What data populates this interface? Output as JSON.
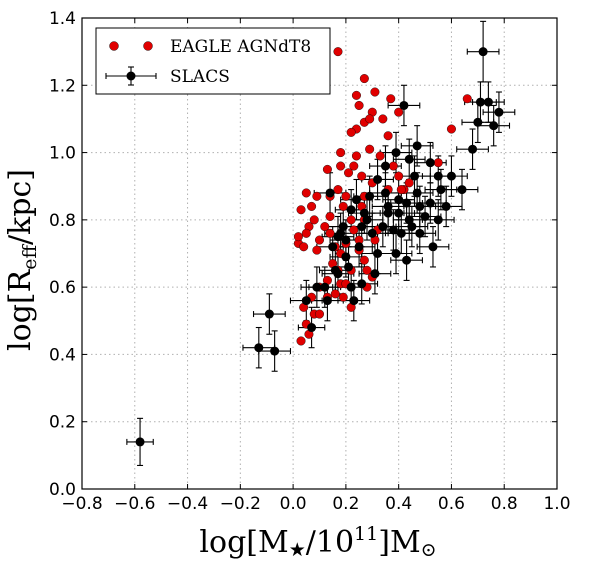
{
  "chart_data": {
    "type": "scatter",
    "title": "",
    "xlabel": "log[M★/10^11]M☉",
    "xlabel_parts": {
      "a": "log[M",
      "b": "★",
      "c": "/10",
      "d": "11",
      "e": "]M",
      "f": "⊙"
    },
    "ylabel": "log[Reff/kpc]",
    "ylabel_parts": {
      "a": "log[R",
      "b": "eff",
      "c": "/kpc]"
    },
    "xlim": [
      -0.8,
      1.0
    ],
    "ylim": [
      0.0,
      1.4
    ],
    "xticks": [
      "−0.8",
      "−0.6",
      "−0.4",
      "−0.2",
      "0.0",
      "0.2",
      "0.4",
      "0.6",
      "0.8",
      "1.0"
    ],
    "xtick_values": [
      -0.8,
      -0.6,
      -0.4,
      -0.2,
      0.0,
      0.2,
      0.4,
      0.6,
      0.8,
      1.0
    ],
    "yticks": [
      "0.0",
      "0.2",
      "0.4",
      "0.6",
      "0.8",
      "1.0",
      "1.2",
      "1.4"
    ],
    "ytick_values": [
      0.0,
      0.2,
      0.4,
      0.6,
      0.8,
      1.0,
      1.2,
      1.4
    ],
    "grid": true,
    "legend_position": "top-left",
    "series": [
      {
        "name": "EAGLE AGNdT8",
        "color": "#e00000",
        "marker": "circle",
        "points": [
          [
            0.17,
            1.3
          ],
          [
            0.24,
            1.17
          ],
          [
            0.25,
            1.14
          ],
          [
            0.27,
            1.22
          ],
          [
            0.3,
            1.12
          ],
          [
            0.31,
            1.18
          ],
          [
            0.27,
            1.09
          ],
          [
            0.29,
            1.1
          ],
          [
            0.34,
            1.1
          ],
          [
            0.36,
            1.05
          ],
          [
            0.37,
            1.16
          ],
          [
            0.4,
            1.12
          ],
          [
            0.38,
            0.96
          ],
          [
            0.24,
            1.07
          ],
          [
            0.22,
            1.06
          ],
          [
            0.18,
            1.0
          ],
          [
            0.24,
            0.99
          ],
          [
            0.29,
            1.01
          ],
          [
            0.33,
            0.99
          ],
          [
            0.18,
            0.96
          ],
          [
            0.21,
            0.94
          ],
          [
            0.3,
            0.91
          ],
          [
            0.26,
            0.93
          ],
          [
            0.13,
            0.95
          ],
          [
            0.27,
            0.87
          ],
          [
            0.36,
            0.89
          ],
          [
            0.42,
            0.89
          ],
          [
            0.4,
            0.93
          ],
          [
            0.17,
            0.89
          ],
          [
            0.2,
            0.87
          ],
          [
            0.14,
            0.87
          ],
          [
            0.09,
            0.87
          ],
          [
            0.05,
            0.88
          ],
          [
            0.07,
            0.84
          ],
          [
            0.03,
            0.83
          ],
          [
            0.06,
            0.78
          ],
          [
            0.08,
            0.8
          ],
          [
            0.12,
            0.78
          ],
          [
            0.14,
            0.76
          ],
          [
            0.1,
            0.74
          ],
          [
            0.05,
            0.76
          ],
          [
            0.02,
            0.73
          ],
          [
            0.04,
            0.72
          ],
          [
            0.2,
            0.73
          ],
          [
            0.23,
            0.77
          ],
          [
            0.27,
            0.8
          ],
          [
            0.18,
            0.7
          ],
          [
            0.15,
            0.67
          ],
          [
            0.22,
            0.65
          ],
          [
            0.27,
            0.68
          ],
          [
            0.25,
            0.71
          ],
          [
            0.31,
            0.74
          ],
          [
            0.32,
            0.77
          ],
          [
            0.13,
            0.62
          ],
          [
            0.18,
            0.61
          ],
          [
            0.1,
            0.6
          ],
          [
            0.07,
            0.57
          ],
          [
            0.04,
            0.54
          ],
          [
            0.08,
            0.52
          ],
          [
            0.1,
            0.52
          ],
          [
            0.13,
            0.57
          ],
          [
            0.16,
            0.58
          ],
          [
            0.19,
            0.57
          ],
          [
            0.22,
            0.54
          ],
          [
            0.17,
            0.65
          ],
          [
            0.2,
            0.61
          ],
          [
            0.28,
            0.65
          ],
          [
            0.3,
            0.63
          ],
          [
            0.28,
            0.6
          ],
          [
            0.05,
            0.49
          ],
          [
            0.06,
            0.46
          ],
          [
            0.03,
            0.44
          ],
          [
            0.41,
            0.89
          ],
          [
            0.44,
            0.91
          ],
          [
            0.23,
            0.96
          ],
          [
            0.14,
            0.81
          ],
          [
            0.02,
            0.75
          ],
          [
            0.25,
            0.74
          ],
          [
            0.16,
            0.72
          ],
          [
            0.09,
            0.71
          ],
          [
            0.6,
            1.07
          ],
          [
            0.66,
            1.16
          ],
          [
            0.55,
            0.97
          ],
          [
            0.26,
            0.84
          ],
          [
            0.22,
            0.8
          ],
          [
            0.19,
            0.84
          ]
        ]
      },
      {
        "name": "SLACS",
        "color": "#000000",
        "marker": "circle-errorbar",
        "points": [
          [
            -0.58,
            0.14,
            0.05,
            0.07
          ],
          [
            -0.13,
            0.42,
            0.06,
            0.06
          ],
          [
            -0.09,
            0.52,
            0.06,
            0.06
          ],
          [
            -0.07,
            0.41,
            0.06,
            0.06
          ],
          [
            0.05,
            0.56,
            0.06,
            0.06
          ],
          [
            0.07,
            0.48,
            0.05,
            0.06
          ],
          [
            0.09,
            0.6,
            0.06,
            0.06
          ],
          [
            0.13,
            0.56,
            0.06,
            0.06
          ],
          [
            0.15,
            0.72,
            0.06,
            0.06
          ],
          [
            0.17,
            0.64,
            0.06,
            0.06
          ],
          [
            0.18,
            0.76,
            0.06,
            0.06
          ],
          [
            0.2,
            0.74,
            0.06,
            0.06
          ],
          [
            0.21,
            0.66,
            0.06,
            0.06
          ],
          [
            0.22,
            0.6,
            0.06,
            0.06
          ],
          [
            0.23,
            0.56,
            0.06,
            0.06
          ],
          [
            0.19,
            0.78,
            0.06,
            0.06
          ],
          [
            0.17,
            0.75,
            0.06,
            0.06
          ],
          [
            0.2,
            0.69,
            0.06,
            0.06
          ],
          [
            0.25,
            0.72,
            0.06,
            0.06
          ],
          [
            0.26,
            0.78,
            0.06,
            0.06
          ],
          [
            0.28,
            0.8,
            0.06,
            0.06
          ],
          [
            0.3,
            0.76,
            0.06,
            0.06
          ],
          [
            0.32,
            0.7,
            0.06,
            0.06
          ],
          [
            0.34,
            0.78,
            0.06,
            0.06
          ],
          [
            0.35,
            0.88,
            0.06,
            0.06
          ],
          [
            0.36,
            0.84,
            0.06,
            0.06
          ],
          [
            0.38,
            0.77,
            0.06,
            0.06
          ],
          [
            0.4,
            0.82,
            0.06,
            0.06
          ],
          [
            0.41,
            0.76,
            0.06,
            0.06
          ],
          [
            0.43,
            0.85,
            0.06,
            0.06
          ],
          [
            0.44,
            0.8,
            0.06,
            0.06
          ],
          [
            0.45,
            0.78,
            0.06,
            0.06
          ],
          [
            0.46,
            0.93,
            0.06,
            0.06
          ],
          [
            0.47,
            0.88,
            0.06,
            0.06
          ],
          [
            0.48,
            0.84,
            0.06,
            0.06
          ],
          [
            0.5,
            0.81,
            0.06,
            0.06
          ],
          [
            0.52,
            0.85,
            0.06,
            0.06
          ],
          [
            0.53,
            0.72,
            0.06,
            0.06
          ],
          [
            0.55,
            0.8,
            0.06,
            0.06
          ],
          [
            0.56,
            0.89,
            0.06,
            0.06
          ],
          [
            0.58,
            0.84,
            0.06,
            0.06
          ],
          [
            0.29,
            0.87,
            0.06,
            0.06
          ],
          [
            0.24,
            0.86,
            0.06,
            0.06
          ],
          [
            0.14,
            0.88,
            0.06,
            0.06
          ],
          [
            0.35,
            0.96,
            0.06,
            0.06
          ],
          [
            0.39,
            1.0,
            0.06,
            0.06
          ],
          [
            0.44,
            0.98,
            0.06,
            0.06
          ],
          [
            0.47,
            1.02,
            0.06,
            0.06
          ],
          [
            0.52,
            0.97,
            0.06,
            0.06
          ],
          [
            0.55,
            0.93,
            0.06,
            0.06
          ],
          [
            0.6,
            0.93,
            0.06,
            0.06
          ],
          [
            0.64,
            0.89,
            0.06,
            0.06
          ],
          [
            0.68,
            1.01,
            0.06,
            0.06
          ],
          [
            0.7,
            1.09,
            0.06,
            0.06
          ],
          [
            0.71,
            1.15,
            0.06,
            0.06
          ],
          [
            0.72,
            1.3,
            0.06,
            0.09
          ],
          [
            0.74,
            1.15,
            0.06,
            0.06
          ],
          [
            0.78,
            1.12,
            0.06,
            0.06
          ],
          [
            0.76,
            1.08,
            0.06,
            0.06
          ],
          [
            0.42,
            1.14,
            0.06,
            0.06
          ],
          [
            0.32,
            0.92,
            0.06,
            0.06
          ],
          [
            0.27,
            0.82,
            0.06,
            0.06
          ],
          [
            0.22,
            0.83,
            0.06,
            0.06
          ],
          [
            0.36,
            0.82,
            0.06,
            0.06
          ],
          [
            0.48,
            0.76,
            0.06,
            0.06
          ],
          [
            0.43,
            0.68,
            0.06,
            0.06
          ],
          [
            0.39,
            0.7,
            0.06,
            0.06
          ],
          [
            0.31,
            0.64,
            0.06,
            0.06
          ],
          [
            0.26,
            0.61,
            0.06,
            0.06
          ],
          [
            0.16,
            0.65,
            0.06,
            0.06
          ],
          [
            0.12,
            0.6,
            0.06,
            0.06
          ],
          [
            0.4,
            0.86,
            0.06,
            0.06
          ]
        ]
      }
    ]
  }
}
